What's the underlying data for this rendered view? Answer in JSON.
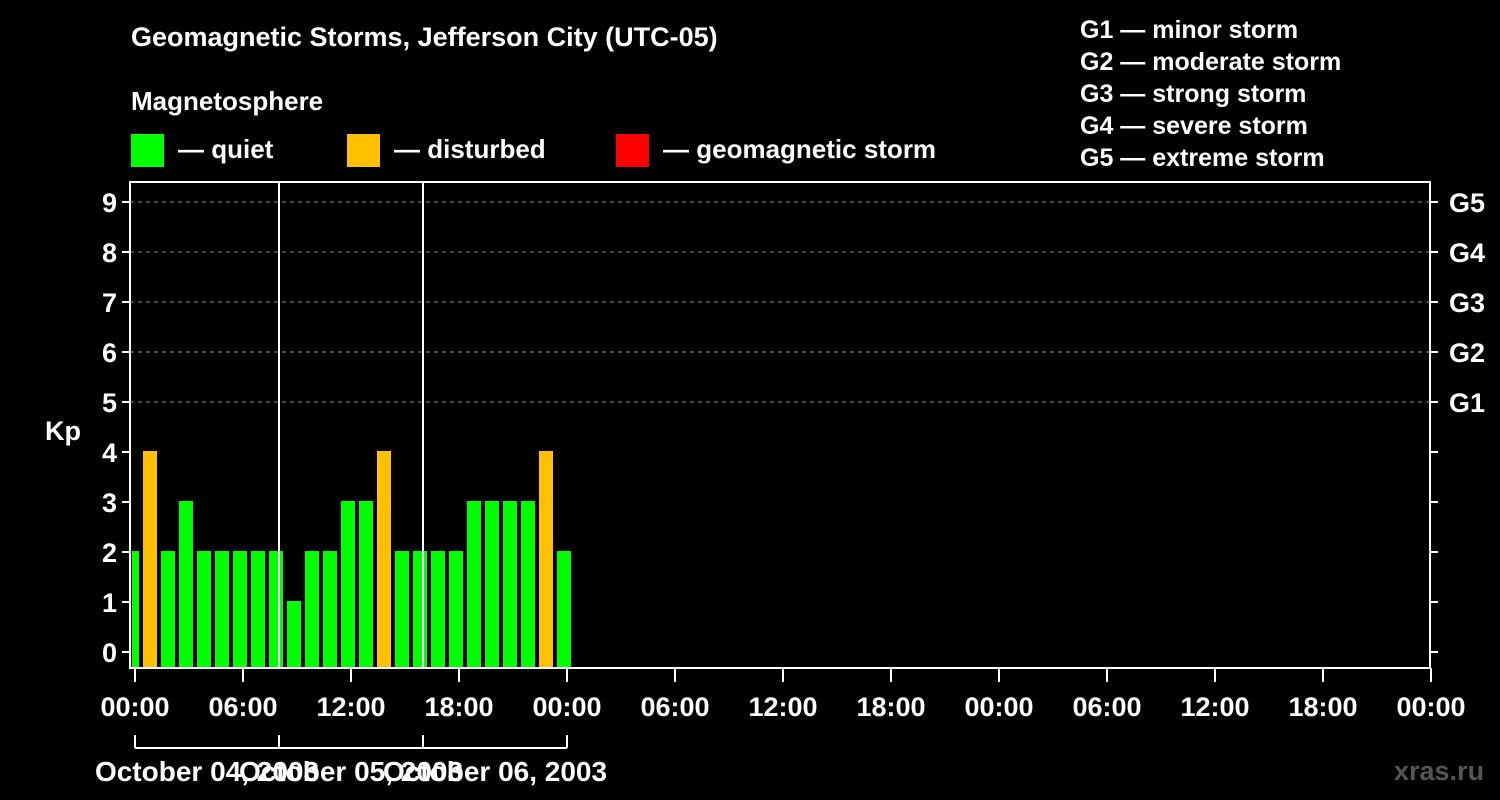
{
  "header": {
    "title": "Geomagnetic Storms, Jefferson City (UTC-05)",
    "subtitle": "Magnetosphere"
  },
  "legend": [
    {
      "label": "— quiet",
      "color": "#00ff00"
    },
    {
      "label": "— disturbed",
      "color": "#ffc000"
    },
    {
      "label": "— geomagnetic storm",
      "color": "#ff0000"
    }
  ],
  "storm_scale": [
    "G1 — minor storm",
    "G2 — moderate storm",
    "G3 — strong storm",
    "G4 — severe storm",
    "G5 — extreme storm"
  ],
  "watermark": "xras.ru",
  "chart_data": {
    "type": "bar",
    "ylabel": "Kp",
    "ylim": [
      0,
      9
    ],
    "yticks": [
      0,
      1,
      2,
      3,
      4,
      5,
      6,
      7,
      8,
      9
    ],
    "right_axis": [
      {
        "kp": 5,
        "label": "G1"
      },
      {
        "kp": 6,
        "label": "G2"
      },
      {
        "kp": 7,
        "label": "G3"
      },
      {
        "kp": 8,
        "label": "G4"
      },
      {
        "kp": 9,
        "label": "G5"
      }
    ],
    "x_tick_labels": [
      "00:00",
      "06:00",
      "12:00",
      "18:00",
      "00:00",
      "06:00",
      "12:00",
      "18:00",
      "00:00",
      "06:00",
      "12:00",
      "18:00",
      "00:00"
    ],
    "days": [
      "October 04, 2003",
      "October 05, 2003",
      "October 06, 2003"
    ],
    "interval_hours": 3,
    "first_interval_start_hour": -2,
    "values": [
      2,
      4,
      2,
      3,
      2,
      2,
      2,
      2,
      2,
      1,
      2,
      2,
      3,
      3,
      4,
      2,
      2,
      2,
      2,
      3,
      3,
      3,
      3,
      4,
      2
    ],
    "colors": {
      "quiet": "#00ff00",
      "disturbed": "#ffc000",
      "storm": "#ff0000"
    },
    "thresholds": {
      "disturbed": 4,
      "storm": 5
    },
    "grid": true
  }
}
